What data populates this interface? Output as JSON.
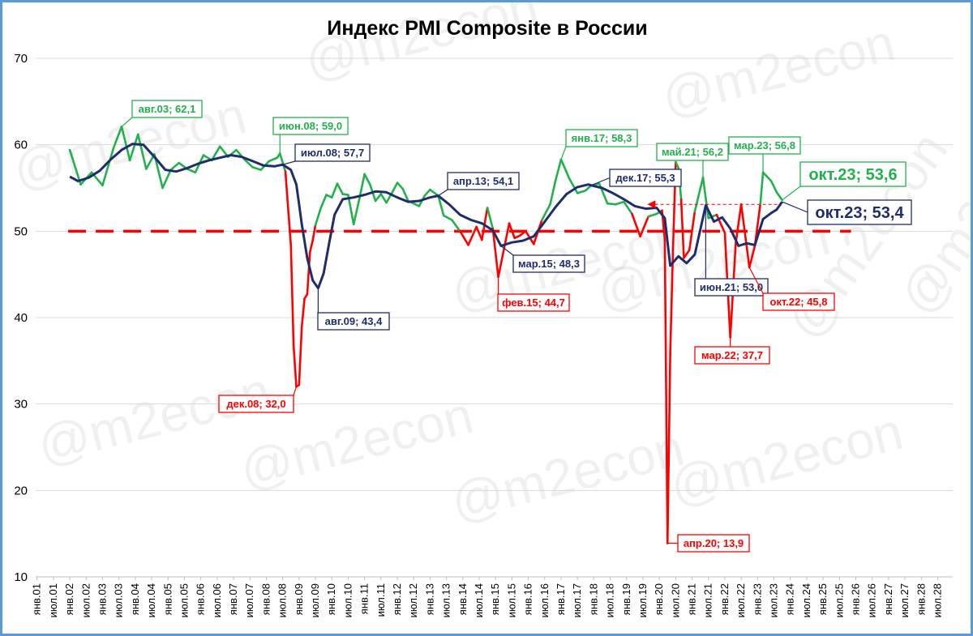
{
  "chart_data": {
    "type": "line",
    "title": "Индекс PMI Composite в России",
    "xlabel": "",
    "ylabel": "",
    "ylim": [
      10,
      70
    ],
    "yticks": [
      "10",
      "20",
      "30",
      "40",
      "50",
      "60",
      "70"
    ],
    "xlim": [
      "янв.01",
      "дек.28"
    ],
    "xticks": [
      "янв.01",
      "июл.01",
      "янв.02",
      "июл.02",
      "янв.03",
      "июл.03",
      "янв.04",
      "июл.04",
      "янв.05",
      "июл.05",
      "янв.06",
      "июл.06",
      "янв.07",
      "июл.07",
      "янв.08",
      "июл.08",
      "янв.09",
      "июл.09",
      "янв.10",
      "июл.10",
      "янв.11",
      "июл.11",
      "янв.12",
      "июл.12",
      "янв.13",
      "июл.13",
      "янв.14",
      "июл.14",
      "янв.15",
      "июл.15",
      "янв.16",
      "июл.16",
      "янв.17",
      "июл.17",
      "янв.18",
      "июл.18",
      "янв.19",
      "июл.19",
      "янв.20",
      "июл.20",
      "янв.21",
      "июл.21",
      "янв.22",
      "июл.22",
      "янв.23",
      "июл.23",
      "янв.24",
      "июл.24",
      "янв.25",
      "июл.25",
      "янв.26",
      "июл.26",
      "янв.27",
      "июл.27",
      "янв.28",
      "июл.28"
    ],
    "grid": true,
    "reference_line": {
      "value": 50,
      "style": "dashed",
      "color": "#ff0000"
    },
    "watermark": "@m2econ",
    "series": [
      {
        "role": "monthly",
        "color": "#22b14c",
        "color_below_50": "#ff0000",
        "points": [
          [
            "янв.02",
            59.4
          ],
          [
            "май.02",
            55.4
          ],
          [
            "сен.02",
            56.8
          ],
          [
            "янв.03",
            55.3
          ],
          [
            "май.03",
            59.6
          ],
          [
            "авг.03",
            62.1
          ],
          [
            "ноя.03",
            58.2
          ],
          [
            "фев.04",
            61.2
          ],
          [
            "май.04",
            57.2
          ],
          [
            "авг.04",
            58.9
          ],
          [
            "ноя.04",
            55.0
          ],
          [
            "фев.05",
            57.1
          ],
          [
            "май.05",
            57.9
          ],
          [
            "авг.05",
            57.2
          ],
          [
            "ноя.05",
            56.8
          ],
          [
            "фев.06",
            58.8
          ],
          [
            "май.06",
            58.2
          ],
          [
            "авг.06",
            59.8
          ],
          [
            "ноя.06",
            58.6
          ],
          [
            "фев.07",
            59.4
          ],
          [
            "май.07",
            58.3
          ],
          [
            "авг.07",
            57.4
          ],
          [
            "ноя.07",
            57.1
          ],
          [
            "фев.08",
            58.1
          ],
          [
            "май.08",
            58.5
          ],
          [
            "июн.08",
            59.0
          ],
          [
            "авг.08",
            56.9
          ],
          [
            "окт.08",
            48.4
          ],
          [
            "ноя.08",
            36.8
          ],
          [
            "дек.08",
            32.0
          ],
          [
            "янв.09",
            32.2
          ],
          [
            "фев.09",
            38.9
          ],
          [
            "мар.09",
            42.2
          ],
          [
            "апр.09",
            42.7
          ],
          [
            "май.09",
            47.6
          ],
          [
            "июн.09",
            48.9
          ],
          [
            "июл.09",
            50.7
          ],
          [
            "сен.09",
            52.7
          ],
          [
            "ноя.09",
            54.2
          ],
          [
            "янв.10",
            53.9
          ],
          [
            "мар.10",
            55.5
          ],
          [
            "май.10",
            54.3
          ],
          [
            "июл.10",
            54.2
          ],
          [
            "сен.10",
            50.8
          ],
          [
            "ноя.10",
            53.6
          ],
          [
            "янв.11",
            56.6
          ],
          [
            "мар.11",
            55.4
          ],
          [
            "май.11",
            53.5
          ],
          [
            "июл.11",
            54.3
          ],
          [
            "сен.11",
            53.3
          ],
          [
            "ноя.11",
            54.4
          ],
          [
            "янв.12",
            55.6
          ],
          [
            "мар.12",
            54.9
          ],
          [
            "май.12",
            53.5
          ],
          [
            "июл.12",
            53.2
          ],
          [
            "сен.12",
            52.9
          ],
          [
            "ноя.12",
            54.1
          ],
          [
            "янв.13",
            54.8
          ],
          [
            "апр.13",
            54.1
          ],
          [
            "июн.13",
            51.8
          ],
          [
            "сен.13",
            51.3
          ],
          [
            "дек.13",
            50.0
          ],
          [
            "мар.14",
            48.4
          ],
          [
            "июн.14",
            50.5
          ],
          [
            "авг.14",
            49.0
          ],
          [
            "окт.14",
            52.7
          ],
          [
            "дек.14",
            50.3
          ],
          [
            "фев.15",
            44.7
          ],
          [
            "апр.15",
            47.8
          ],
          [
            "июн.15",
            50.9
          ],
          [
            "авг.15",
            49.2
          ],
          [
            "окт.15",
            49.5
          ],
          [
            "дек.15",
            50.0
          ],
          [
            "мар.16",
            48.5
          ],
          [
            "июн.16",
            51.3
          ],
          [
            "сен.16",
            53.1
          ],
          [
            "ноя.16",
            55.9
          ],
          [
            "янв.17",
            58.3
          ],
          [
            "апр.17",
            56.1
          ],
          [
            "июл.17",
            54.4
          ],
          [
            "окт.17",
            54.7
          ],
          [
            "дек.17",
            55.3
          ],
          [
            "мар.18",
            55.5
          ],
          [
            "июн.18",
            53.2
          ],
          [
            "сен.18",
            53.1
          ],
          [
            "дек.18",
            53.4
          ],
          [
            "мар.19",
            52.0
          ],
          [
            "июн.19",
            49.4
          ],
          [
            "сен.19",
            51.7
          ],
          [
            "дек.19",
            52.0
          ],
          [
            "фев.20",
            52.4
          ],
          [
            "мар.20",
            49.0
          ],
          [
            "апр.20",
            13.9
          ],
          [
            "май.20",
            35.9
          ],
          [
            "июн.20",
            47.8
          ],
          [
            "июл.20",
            58.0
          ],
          [
            "авг.20",
            57.3
          ],
          [
            "сен.20",
            53.7
          ],
          [
            "окт.20",
            46.9
          ],
          [
            "дек.20",
            47.8
          ],
          [
            "фев.21",
            52.3
          ],
          [
            "май.21",
            56.2
          ],
          [
            "июл.21",
            51.5
          ],
          [
            "окт.21",
            51.9
          ],
          [
            "янв.22",
            49.8
          ],
          [
            "мар.22",
            37.7
          ],
          [
            "май.22",
            48.6
          ],
          [
            "июл.22",
            53.1
          ],
          [
            "окт.22",
            45.8
          ],
          [
            "дек.22",
            48.3
          ],
          [
            "фев.23",
            53.1
          ],
          [
            "мар.23",
            56.8
          ],
          [
            "июн.23",
            55.8
          ],
          [
            "авг.23",
            54.5
          ],
          [
            "окт.23",
            53.6
          ]
        ]
      },
      {
        "role": "trend",
        "color": "#1f2d6b",
        "points": [
          [
            "янв.02",
            56.3
          ],
          [
            "апр.02",
            55.8
          ],
          [
            "авг.02",
            56.2
          ],
          [
            "дек.02",
            57.0
          ],
          [
            "апр.03",
            58.3
          ],
          [
            "авг.03",
            59.4
          ],
          [
            "дек.03",
            60.1
          ],
          [
            "апр.04",
            60.0
          ],
          [
            "авг.04",
            58.6
          ],
          [
            "дек.04",
            57.1
          ],
          [
            "апр.05",
            56.9
          ],
          [
            "авг.05",
            57.3
          ],
          [
            "дек.05",
            57.8
          ],
          [
            "апр.06",
            58.2
          ],
          [
            "авг.06",
            58.5
          ],
          [
            "дек.06",
            58.8
          ],
          [
            "апр.07",
            58.6
          ],
          [
            "авг.07",
            58.1
          ],
          [
            "дек.07",
            57.6
          ],
          [
            "апр.08",
            57.5
          ],
          [
            "июл.08",
            57.7
          ],
          [
            "окт.08",
            57.1
          ],
          [
            "дек.08",
            55.4
          ],
          [
            "фев.09",
            50.8
          ],
          [
            "апр.09",
            46.9
          ],
          [
            "июн.09",
            44.3
          ],
          [
            "авг.09",
            43.4
          ],
          [
            "окт.09",
            45.1
          ],
          [
            "дек.09",
            48.6
          ],
          [
            "фев.10",
            51.9
          ],
          [
            "май.10",
            53.7
          ],
          [
            "сен.10",
            53.9
          ],
          [
            "янв.11",
            54.2
          ],
          [
            "май.11",
            54.6
          ],
          [
            "сен.11",
            54.5
          ],
          [
            "янв.12",
            53.9
          ],
          [
            "май.12",
            53.4
          ],
          [
            "сен.12",
            53.5
          ],
          [
            "янв.13",
            53.9
          ],
          [
            "апр.13",
            54.1
          ],
          [
            "авг.13",
            53.1
          ],
          [
            "дек.13",
            51.9
          ],
          [
            "апр.14",
            51.3
          ],
          [
            "авг.14",
            50.9
          ],
          [
            "дек.14",
            50.1
          ],
          [
            "мар.15",
            48.3
          ],
          [
            "июл.15",
            48.7
          ],
          [
            "ноя.15",
            48.9
          ],
          [
            "мар.16",
            49.4
          ],
          [
            "июл.16",
            51.1
          ],
          [
            "ноя.16",
            52.8
          ],
          [
            "мар.17",
            54.3
          ],
          [
            "июл.17",
            55.1
          ],
          [
            "ноя.17",
            55.4
          ],
          [
            "дек.17",
            55.3
          ],
          [
            "апр.18",
            55.0
          ],
          [
            "авг.18",
            54.4
          ],
          [
            "дек.18",
            53.7
          ],
          [
            "апр.19",
            52.9
          ],
          [
            "авг.19",
            52.6
          ],
          [
            "дек.19",
            52.7
          ],
          [
            "мар.20",
            51.5
          ],
          [
            "май.20",
            46.0
          ],
          [
            "авг.20",
            47.1
          ],
          [
            "ноя.20",
            46.3
          ],
          [
            "фев.21",
            47.3
          ],
          [
            "июн.21",
            53.0
          ],
          [
            "сен.21",
            51.1
          ],
          [
            "дек.21",
            51.6
          ],
          [
            "мар.22",
            50.3
          ],
          [
            "июн.22",
            48.3
          ],
          [
            "сен.22",
            48.6
          ],
          [
            "дек.22",
            48.4
          ],
          [
            "мар.23",
            51.4
          ],
          [
            "июн.23",
            52.1
          ],
          [
            "авг.23",
            52.5
          ],
          [
            "окт.23",
            53.4
          ]
        ]
      }
    ],
    "annotations": [
      {
        "label": "авг.03; 62,1",
        "at": [
          "авг.03",
          62.1
        ],
        "color": "#22b14c"
      },
      {
        "label": "июн.08; 59,0",
        "at": [
          "июн.08",
          59.0
        ],
        "color": "#22b14c"
      },
      {
        "label": "июл.08; 57,7",
        "at": [
          "июл.08",
          57.7
        ],
        "color": "#1f2d6b"
      },
      {
        "label": "дек.08; 32,0",
        "at": [
          "дек.08",
          32.0
        ],
        "color": "#ff0000"
      },
      {
        "label": "авг.09; 43,4",
        "at": [
          "авг.09",
          43.4
        ],
        "color": "#1f2d6b"
      },
      {
        "label": "апр.13; 54,1",
        "at": [
          "апр.13",
          54.1
        ],
        "color": "#1f2d6b"
      },
      {
        "label": "мар.15; 48,3",
        "at": [
          "мар.15",
          48.3
        ],
        "color": "#1f2d6b"
      },
      {
        "label": "фев.15; 44,7",
        "at": [
          "фев.15",
          44.7
        ],
        "color": "#ff0000"
      },
      {
        "label": "янв.17; 58,3",
        "at": [
          "янв.17",
          58.3
        ],
        "color": "#22b14c"
      },
      {
        "label": "дек.17; 55,3",
        "at": [
          "дек.17",
          55.3
        ],
        "color": "#1f2d6b"
      },
      {
        "label": "апр.20; 13,9",
        "at": [
          "апр.20",
          13.9
        ],
        "color": "#ff0000"
      },
      {
        "label": "май.21; 56,2",
        "at": [
          "май.21",
          56.2
        ],
        "color": "#22b14c"
      },
      {
        "label": "июн.21; 53,0",
        "at": [
          "июн.21",
          53.0
        ],
        "color": "#1f2d6b"
      },
      {
        "label": "мар.22; 37,7",
        "at": [
          "мар.22",
          37.7
        ],
        "color": "#ff0000"
      },
      {
        "label": "окт.22; 45,8",
        "at": [
          "окт.22",
          45.8
        ],
        "color": "#ff0000"
      },
      {
        "label": "мар.23; 56,8",
        "at": [
          "мар.23",
          56.8
        ],
        "color": "#22b14c"
      },
      {
        "label": "окт.23; 53,6",
        "at": [
          "окт.23",
          53.6
        ],
        "color": "#22b14c"
      },
      {
        "label": "окт.23; 53,4",
        "at": [
          "окт.23",
          53.4
        ],
        "color": "#1f2d6b"
      }
    ]
  }
}
